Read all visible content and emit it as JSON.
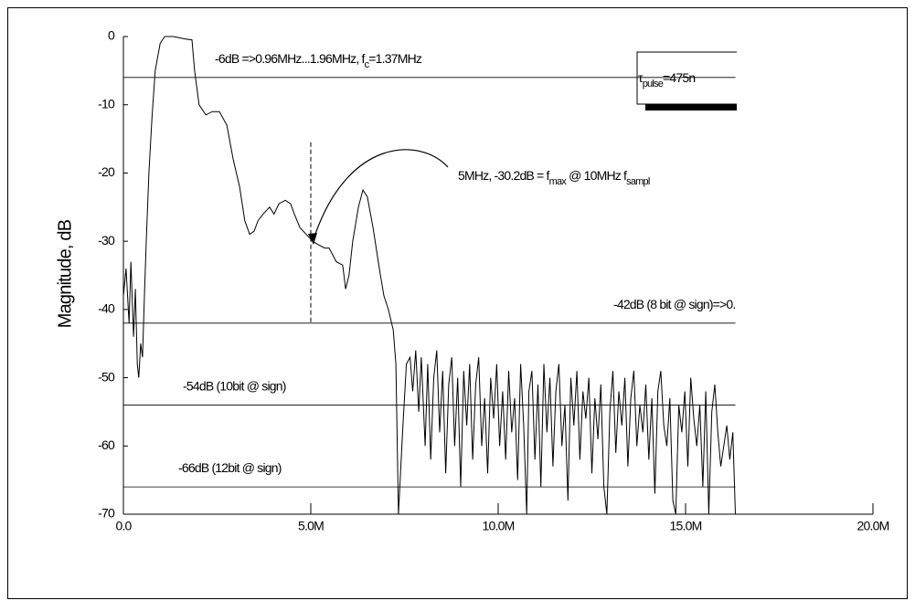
{
  "chart_data": {
    "type": "line",
    "y_label": "Magnitude, dB",
    "xlim": [
      0,
      20
    ],
    "ylim": [
      -70,
      0
    ],
    "xticks": [
      {
        "value": 0,
        "label": "0.0"
      },
      {
        "value": 5,
        "label": "5.0M"
      },
      {
        "value": 10,
        "label": "10.0M"
      },
      {
        "value": 15,
        "label": "15.0M"
      },
      {
        "value": 20,
        "label": "20.0M"
      }
    ],
    "yticks": [
      0,
      -10,
      -20,
      -30,
      -40,
      -50,
      -60,
      -70
    ],
    "color": "#000000",
    "x": [
      0,
      0.07,
      0.15,
      0.2,
      0.27,
      0.32,
      0.37,
      0.41,
      0.46,
      0.51,
      0.56,
      0.61,
      0.68,
      0.76,
      0.85,
      0.98,
      1.1,
      1.34,
      1.59,
      1.83,
      1.9,
      2.02,
      2.2,
      2.37,
      2.56,
      2.76,
      2.93,
      3.1,
      3.24,
      3.37,
      3.49,
      3.59,
      3.73,
      3.9,
      4.02,
      4.15,
      4.32,
      4.46,
      4.56,
      4.71,
      4.88,
      5.05,
      5.2,
      5.37,
      5.49,
      5.68,
      5.85,
      5.93,
      6.02,
      6.12,
      6.27,
      6.39,
      6.51,
      6.66,
      6.83,
      6.95,
      7.07,
      7.2,
      7.27,
      7.34,
      7.45,
      7.55,
      7.65,
      7.72,
      7.8,
      7.88,
      7.95,
      8.05,
      8.12,
      8.2,
      8.28,
      8.36,
      8.44,
      8.52,
      8.6,
      8.68,
      8.76,
      8.84,
      8.92,
      9.0,
      9.08,
      9.16,
      9.24,
      9.32,
      9.4,
      9.48,
      9.56,
      9.64,
      9.72,
      9.8,
      9.88,
      9.96,
      10.04,
      10.12,
      10.2,
      10.28,
      10.36,
      10.44,
      10.52,
      10.6,
      10.68,
      10.76,
      10.82,
      10.9,
      10.98,
      11.06,
      11.14,
      11.22,
      11.3,
      11.38,
      11.46,
      11.54,
      11.62,
      11.7,
      11.78,
      11.86,
      11.94,
      12.02,
      12.1,
      12.18,
      12.26,
      12.34,
      12.42,
      12.5,
      12.58,
      12.66,
      12.74,
      12.82,
      12.9,
      12.98,
      13.06,
      13.14,
      13.22,
      13.3,
      13.38,
      13.46,
      13.54,
      13.62,
      13.7,
      13.78,
      13.86,
      13.94,
      14.02,
      14.1,
      14.18,
      14.26,
      14.34,
      14.42,
      14.5,
      14.58,
      14.66,
      14.74,
      14.82,
      14.9,
      14.98,
      15.06,
      15.14,
      15.22,
      15.3,
      15.38,
      15.46,
      15.54,
      15.62,
      15.7,
      15.78,
      15.86,
      15.94,
      16.02,
      16.1,
      16.18,
      16.26,
      16.33
    ],
    "values": [
      -38,
      -34,
      -42,
      -33,
      -44,
      -37,
      -48,
      -50,
      -45,
      -47,
      -38,
      -30,
      -20,
      -12,
      -5,
      -1,
      0,
      0,
      -0.3,
      -0.5,
      -5,
      -10,
      -11.5,
      -11,
      -11,
      -13,
      -18,
      -22,
      -27,
      -29,
      -28.5,
      -27,
      -26,
      -25,
      -26,
      -24.5,
      -24,
      -24.5,
      -26,
      -28,
      -29,
      -30,
      -30.5,
      -31,
      -31,
      -33,
      -33.5,
      -37,
      -35,
      -30,
      -25,
      -22.5,
      -23.5,
      -28,
      -34,
      -38,
      -40,
      -43,
      -48,
      -70,
      -58,
      -48,
      -47,
      -52,
      -46,
      -55,
      -47,
      -60,
      -48,
      -62,
      -50,
      -46,
      -58,
      -49,
      -64,
      -51,
      -47,
      -60,
      -50,
      -66,
      -49,
      -57,
      -48,
      -62,
      -51,
      -47,
      -60,
      -53,
      -64,
      -50,
      -56,
      -48,
      -60,
      -52,
      -62,
      -49,
      -58,
      -53,
      -65,
      -48,
      -57,
      -70,
      -52,
      -49,
      -62,
      -51,
      -66,
      -48,
      -58,
      -50,
      -63,
      -52,
      -48,
      -60,
      -54,
      -68,
      -50,
      -57,
      -49,
      -62,
      -52,
      -56,
      -50,
      -64,
      -53,
      -59,
      -51,
      -66,
      -70,
      -55,
      -49,
      -61,
      -52,
      -57,
      -50,
      -63,
      -53,
      -49,
      -60,
      -54,
      -58,
      -51,
      -62,
      -53,
      -67,
      -52,
      -49,
      -57,
      -60,
      -53,
      -68,
      -70,
      -54,
      -58,
      -52,
      -63,
      -50,
      -56,
      -60,
      -54,
      -66,
      -52,
      -70,
      -55,
      -51,
      -58,
      -63,
      -60,
      -57,
      -62,
      -58,
      -70
    ],
    "reference_lines": [
      {
        "value": -6,
        "label": [
          "-6dB =>0.96MHz...1.96MHz, f",
          "c",
          "=1.37MHz"
        ]
      },
      {
        "value": -42,
        "label": [
          "-42dB (8 bit @ sign)=>0."
        ]
      },
      {
        "value": -54,
        "label": [
          "-54dB (10bit @ sign)"
        ]
      },
      {
        "value": -66,
        "label": [
          "-66dB (12bit @ sign)"
        ]
      }
    ],
    "cursor": {
      "x": 5,
      "y_top": -15.5,
      "y_bottom": -42
    },
    "annotation": [
      "5MHz, -30.2dB = f",
      "max",
      " @ 10MHz f",
      "sampl"
    ],
    "pulse_label": [
      "τ",
      "pulse",
      "=475n"
    ]
  }
}
